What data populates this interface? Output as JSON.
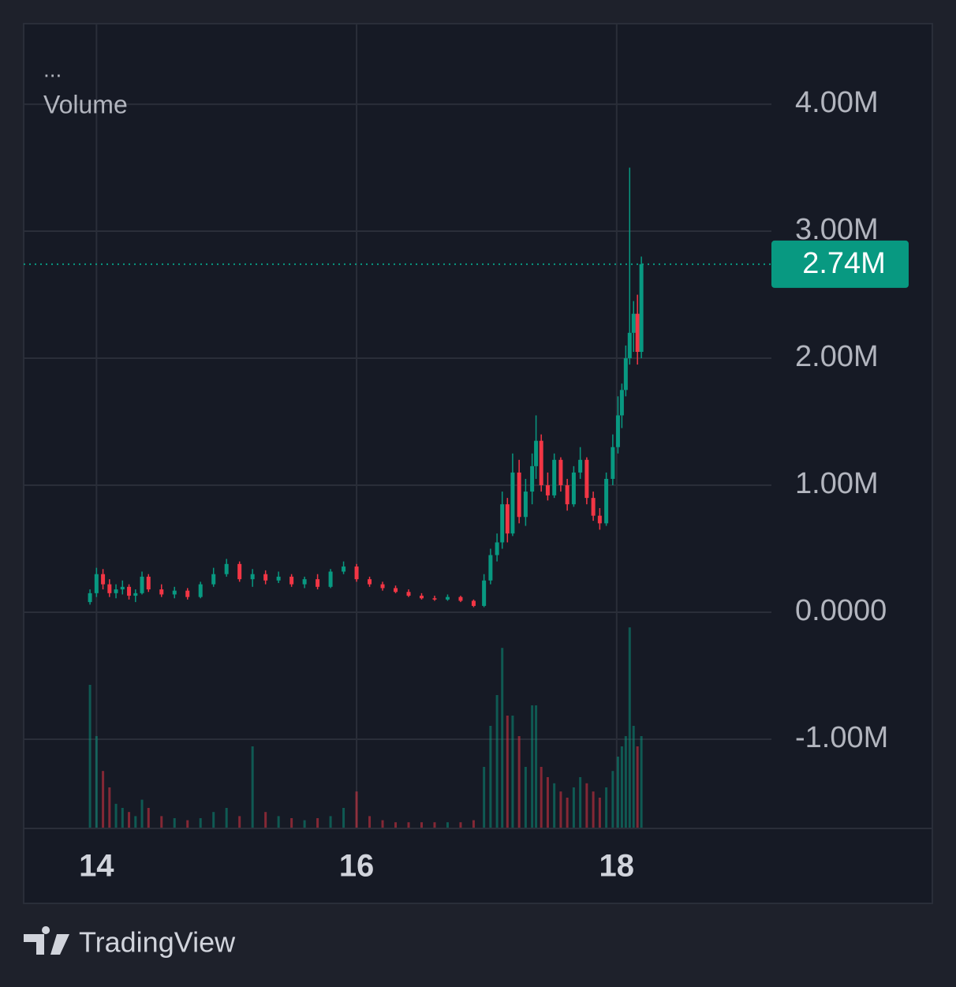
{
  "chart_data": {
    "type": "candlestick",
    "legend_dots": "...",
    "indicator": "Volume",
    "brand": "TradingView",
    "up_color": "#089981",
    "down_color": "#f23645",
    "grid": true,
    "x": [
      13.95,
      14.0,
      14.05,
      14.1,
      14.15,
      14.2,
      14.25,
      14.3,
      14.35,
      14.4,
      14.5,
      14.6,
      14.7,
      14.8,
      14.9,
      15.0,
      15.1,
      15.2,
      15.3,
      15.4,
      15.5,
      15.6,
      15.7,
      15.8,
      15.9,
      16.0,
      16.1,
      16.2,
      16.3,
      16.4,
      16.5,
      16.6,
      16.7,
      16.8,
      16.9,
      16.98,
      17.03,
      17.08,
      17.12,
      17.16,
      17.2,
      17.25,
      17.3,
      17.35,
      17.38,
      17.42,
      17.47,
      17.52,
      17.57,
      17.62,
      17.67,
      17.72,
      17.77,
      17.82,
      17.87,
      17.92,
      17.97,
      18.01,
      18.04,
      18.07,
      18.1,
      18.13,
      18.16,
      18.19
    ],
    "ohlc": [
      [
        0.08,
        0.18,
        0.06,
        0.15
      ],
      [
        0.15,
        0.35,
        0.12,
        0.3
      ],
      [
        0.3,
        0.34,
        0.18,
        0.22
      ],
      [
        0.22,
        0.26,
        0.12,
        0.15
      ],
      [
        0.15,
        0.22,
        0.11,
        0.18
      ],
      [
        0.18,
        0.25,
        0.14,
        0.2
      ],
      [
        0.2,
        0.22,
        0.1,
        0.13
      ],
      [
        0.13,
        0.18,
        0.08,
        0.15
      ],
      [
        0.15,
        0.32,
        0.14,
        0.28
      ],
      [
        0.28,
        0.3,
        0.16,
        0.18
      ],
      [
        0.18,
        0.22,
        0.12,
        0.14
      ],
      [
        0.14,
        0.2,
        0.11,
        0.17
      ],
      [
        0.17,
        0.19,
        0.1,
        0.12
      ],
      [
        0.12,
        0.24,
        0.11,
        0.22
      ],
      [
        0.22,
        0.35,
        0.2,
        0.3
      ],
      [
        0.3,
        0.42,
        0.28,
        0.38
      ],
      [
        0.38,
        0.4,
        0.24,
        0.26
      ],
      [
        0.26,
        0.34,
        0.2,
        0.3
      ],
      [
        0.3,
        0.33,
        0.22,
        0.25
      ],
      [
        0.25,
        0.32,
        0.23,
        0.28
      ],
      [
        0.28,
        0.3,
        0.2,
        0.22
      ],
      [
        0.22,
        0.28,
        0.19,
        0.26
      ],
      [
        0.26,
        0.3,
        0.18,
        0.2
      ],
      [
        0.2,
        0.34,
        0.19,
        0.32
      ],
      [
        0.32,
        0.4,
        0.3,
        0.36
      ],
      [
        0.36,
        0.38,
        0.24,
        0.26
      ],
      [
        0.26,
        0.28,
        0.2,
        0.22
      ],
      [
        0.22,
        0.24,
        0.17,
        0.19
      ],
      [
        0.19,
        0.21,
        0.15,
        0.16
      ],
      [
        0.16,
        0.18,
        0.12,
        0.13
      ],
      [
        0.13,
        0.15,
        0.1,
        0.11
      ],
      [
        0.11,
        0.13,
        0.09,
        0.1
      ],
      [
        0.1,
        0.14,
        0.09,
        0.12
      ],
      [
        0.12,
        0.13,
        0.08,
        0.09
      ],
      [
        0.09,
        0.1,
        0.04,
        0.05
      ],
      [
        0.05,
        0.3,
        0.04,
        0.25
      ],
      [
        0.25,
        0.5,
        0.22,
        0.45
      ],
      [
        0.45,
        0.62,
        0.4,
        0.55
      ],
      [
        0.55,
        0.95,
        0.5,
        0.85
      ],
      [
        0.85,
        0.9,
        0.55,
        0.62
      ],
      [
        0.62,
        1.25,
        0.6,
        1.1
      ],
      [
        1.1,
        1.2,
        0.7,
        0.75
      ],
      [
        0.75,
        1.05,
        0.68,
        0.95
      ],
      [
        0.95,
        1.25,
        0.85,
        1.15
      ],
      [
        1.15,
        1.55,
        1.05,
        1.35
      ],
      [
        1.35,
        1.4,
        0.95,
        1.0
      ],
      [
        1.0,
        1.1,
        0.88,
        0.92
      ],
      [
        0.92,
        1.25,
        0.9,
        1.2
      ],
      [
        1.2,
        1.22,
        0.95,
        1.0
      ],
      [
        1.0,
        1.05,
        0.8,
        0.85
      ],
      [
        0.85,
        1.15,
        0.83,
        1.1
      ],
      [
        1.1,
        1.3,
        1.05,
        1.2
      ],
      [
        1.2,
        1.22,
        0.85,
        0.9
      ],
      [
        0.9,
        0.95,
        0.72,
        0.76
      ],
      [
        0.76,
        0.82,
        0.65,
        0.7
      ],
      [
        0.7,
        1.1,
        0.68,
        1.05
      ],
      [
        1.05,
        1.4,
        1.0,
        1.3
      ],
      [
        1.3,
        1.7,
        1.25,
        1.55
      ],
      [
        1.55,
        1.8,
        1.45,
        1.75
      ],
      [
        1.75,
        2.1,
        1.7,
        2.0
      ],
      [
        2.0,
        3.5,
        1.95,
        2.2
      ],
      [
        2.2,
        2.45,
        2.05,
        2.35
      ],
      [
        2.35,
        2.5,
        1.95,
        2.05
      ],
      [
        2.05,
        2.8,
        2.0,
        2.74
      ]
    ],
    "volume": [
      70,
      45,
      28,
      20,
      12,
      10,
      8,
      6,
      14,
      10,
      6,
      5,
      4,
      5,
      8,
      10,
      6,
      40,
      8,
      6,
      5,
      4,
      5,
      6,
      10,
      18,
      6,
      4,
      3,
      3,
      3,
      3,
      3,
      3,
      4,
      30,
      50,
      65,
      88,
      55,
      55,
      45,
      30,
      60,
      60,
      30,
      25,
      22,
      18,
      15,
      20,
      25,
      22,
      18,
      15,
      20,
      28,
      35,
      40,
      45,
      98,
      50,
      40,
      45
    ],
    "y2lim": [
      0,
      100
    ],
    "xlim": [
      13.44,
      19.19
    ],
    "ylim": [
      -1.702,
      4.634
    ],
    "xticks": [
      14,
      16,
      18
    ],
    "yticks": [
      {
        "value": -1,
        "label": "-1.00M"
      },
      {
        "value": 0,
        "label": "0.0000"
      },
      {
        "value": 1,
        "label": "1.00M"
      },
      {
        "value": 2,
        "label": "2.00M"
      },
      {
        "value": 3,
        "label": "3.00M"
      },
      {
        "value": 4,
        "label": "4.00M"
      }
    ],
    "last_price": {
      "value": 2.74,
      "label": "2.74M"
    }
  }
}
